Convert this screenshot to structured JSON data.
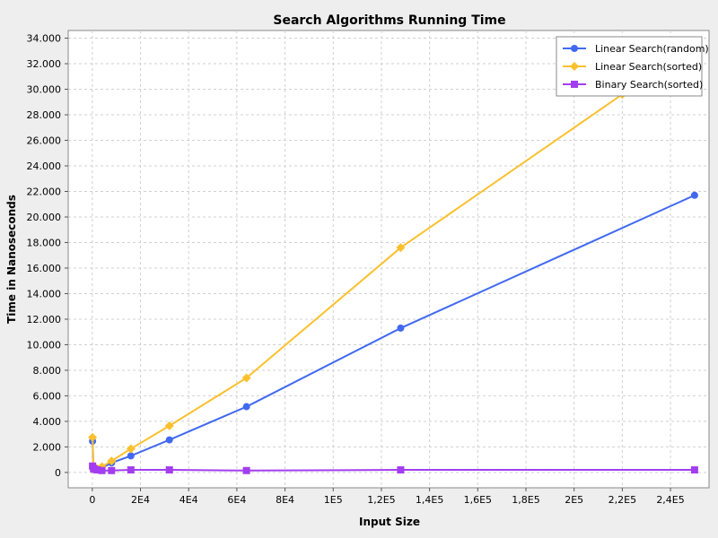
{
  "chart_data": {
    "type": "line",
    "title": "Search Algorithms Running Time",
    "xlabel": "Input Size",
    "ylabel": "Time in Nanoseconds",
    "xlim": [
      -10000,
      256000
    ],
    "ylim": [
      -1200,
      34600
    ],
    "x_ticks": [
      {
        "value": 0,
        "label": "0"
      },
      {
        "value": 20000,
        "label": "2E4"
      },
      {
        "value": 40000,
        "label": "4E4"
      },
      {
        "value": 60000,
        "label": "6E4"
      },
      {
        "value": 80000,
        "label": "8E4"
      },
      {
        "value": 100000,
        "label": "1E5"
      },
      {
        "value": 120000,
        "label": "1,2E5"
      },
      {
        "value": 140000,
        "label": "1,4E5"
      },
      {
        "value": 160000,
        "label": "1,6E5"
      },
      {
        "value": 180000,
        "label": "1,8E5"
      },
      {
        "value": 200000,
        "label": "2E5"
      },
      {
        "value": 220000,
        "label": "2,2E5"
      },
      {
        "value": 240000,
        "label": "2,4E5"
      }
    ],
    "y_ticks": [
      {
        "value": 0,
        "label": "0"
      },
      {
        "value": 2000,
        "label": "2.000"
      },
      {
        "value": 4000,
        "label": "4.000"
      },
      {
        "value": 6000,
        "label": "6.000"
      },
      {
        "value": 8000,
        "label": "8.000"
      },
      {
        "value": 10000,
        "label": "10.000"
      },
      {
        "value": 12000,
        "label": "12.000"
      },
      {
        "value": 14000,
        "label": "14.000"
      },
      {
        "value": 16000,
        "label": "16.000"
      },
      {
        "value": 18000,
        "label": "18.000"
      },
      {
        "value": 20000,
        "label": "20.000"
      },
      {
        "value": 22000,
        "label": "22.000"
      },
      {
        "value": 24000,
        "label": "24.000"
      },
      {
        "value": 26000,
        "label": "26.000"
      },
      {
        "value": 28000,
        "label": "28.000"
      },
      {
        "value": 30000,
        "label": "30.000"
      },
      {
        "value": 32000,
        "label": "32.000"
      },
      {
        "value": 34000,
        "label": "34.000"
      }
    ],
    "grid": true,
    "legend_position": "top-right",
    "series": [
      {
        "name": "Linear Search(random)",
        "color": "#4169f0",
        "marker": "circle",
        "points": [
          {
            "x": 100,
            "y": 2450
          },
          {
            "x": 500,
            "y": 350
          },
          {
            "x": 1000,
            "y": 300
          },
          {
            "x": 2000,
            "y": 200
          },
          {
            "x": 4000,
            "y": 350
          },
          {
            "x": 8000,
            "y": 750
          },
          {
            "x": 16000,
            "y": 1300
          },
          {
            "x": 32000,
            "y": 2550
          },
          {
            "x": 64000,
            "y": 5150
          },
          {
            "x": 128000,
            "y": 11300
          },
          {
            "x": 250000,
            "y": 21700
          }
        ]
      },
      {
        "name": "Linear Search(sorted)",
        "color": "#fbc02d",
        "marker": "diamond",
        "points": [
          {
            "x": 100,
            "y": 2750
          },
          {
            "x": 500,
            "y": 500
          },
          {
            "x": 1000,
            "y": 400
          },
          {
            "x": 2000,
            "y": 300
          },
          {
            "x": 4000,
            "y": 450
          },
          {
            "x": 8000,
            "y": 900
          },
          {
            "x": 16000,
            "y": 1850
          },
          {
            "x": 32000,
            "y": 3650
          },
          {
            "x": 64000,
            "y": 7400
          },
          {
            "x": 128000,
            "y": 17600
          },
          {
            "x": 220000,
            "y": 29600
          }
        ]
      },
      {
        "name": "Binary Search(sorted)",
        "color": "#a33df0",
        "marker": "square",
        "points": [
          {
            "x": 100,
            "y": 500
          },
          {
            "x": 500,
            "y": 300
          },
          {
            "x": 1000,
            "y": 250
          },
          {
            "x": 2000,
            "y": 200
          },
          {
            "x": 4000,
            "y": 150
          },
          {
            "x": 8000,
            "y": 150
          },
          {
            "x": 16000,
            "y": 200
          },
          {
            "x": 32000,
            "y": 200
          },
          {
            "x": 64000,
            "y": 150
          },
          {
            "x": 128000,
            "y": 200
          },
          {
            "x": 250000,
            "y": 200
          }
        ]
      }
    ]
  }
}
